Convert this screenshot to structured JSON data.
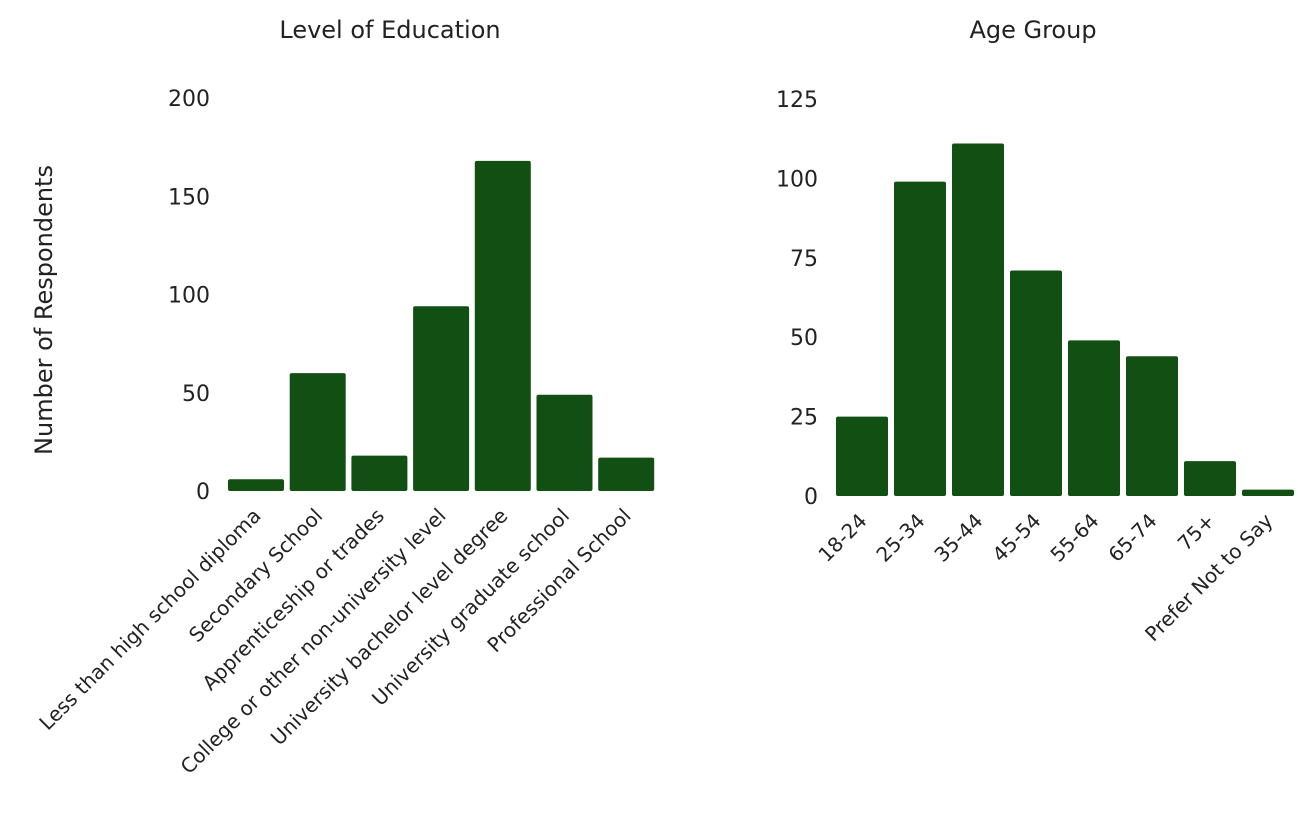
{
  "colors": {
    "bar": "#124f12",
    "text": "#222222"
  },
  "y_axis_label": "Number of Respondents",
  "chart_data": [
    {
      "type": "bar",
      "title": "Level of Education",
      "ylabel": "Number of Respondents",
      "xlabel": "",
      "ylim": [
        0,
        200
      ],
      "yticks": [
        0,
        50,
        100,
        150,
        200
      ],
      "grid": false,
      "categories": [
        "Less than high school diploma",
        "Secondary School",
        "Apprenticeship or trades",
        "College or other non-university level",
        "University bachelor level degree",
        "University graduate school",
        "Professional School"
      ],
      "values": [
        6,
        60,
        18,
        94,
        168,
        49,
        17
      ]
    },
    {
      "type": "bar",
      "title": "Age Group",
      "ylabel": "",
      "xlabel": "",
      "ylim": [
        0,
        125
      ],
      "yticks": [
        0,
        25,
        50,
        75,
        100,
        125
      ],
      "grid": false,
      "categories": [
        "18-24",
        "25-34",
        "35-44",
        "45-54",
        "55-64",
        "65-74",
        "75+",
        "Prefer Not to Say"
      ],
      "values": [
        25,
        99,
        111,
        71,
        49,
        44,
        11,
        2
      ]
    }
  ]
}
